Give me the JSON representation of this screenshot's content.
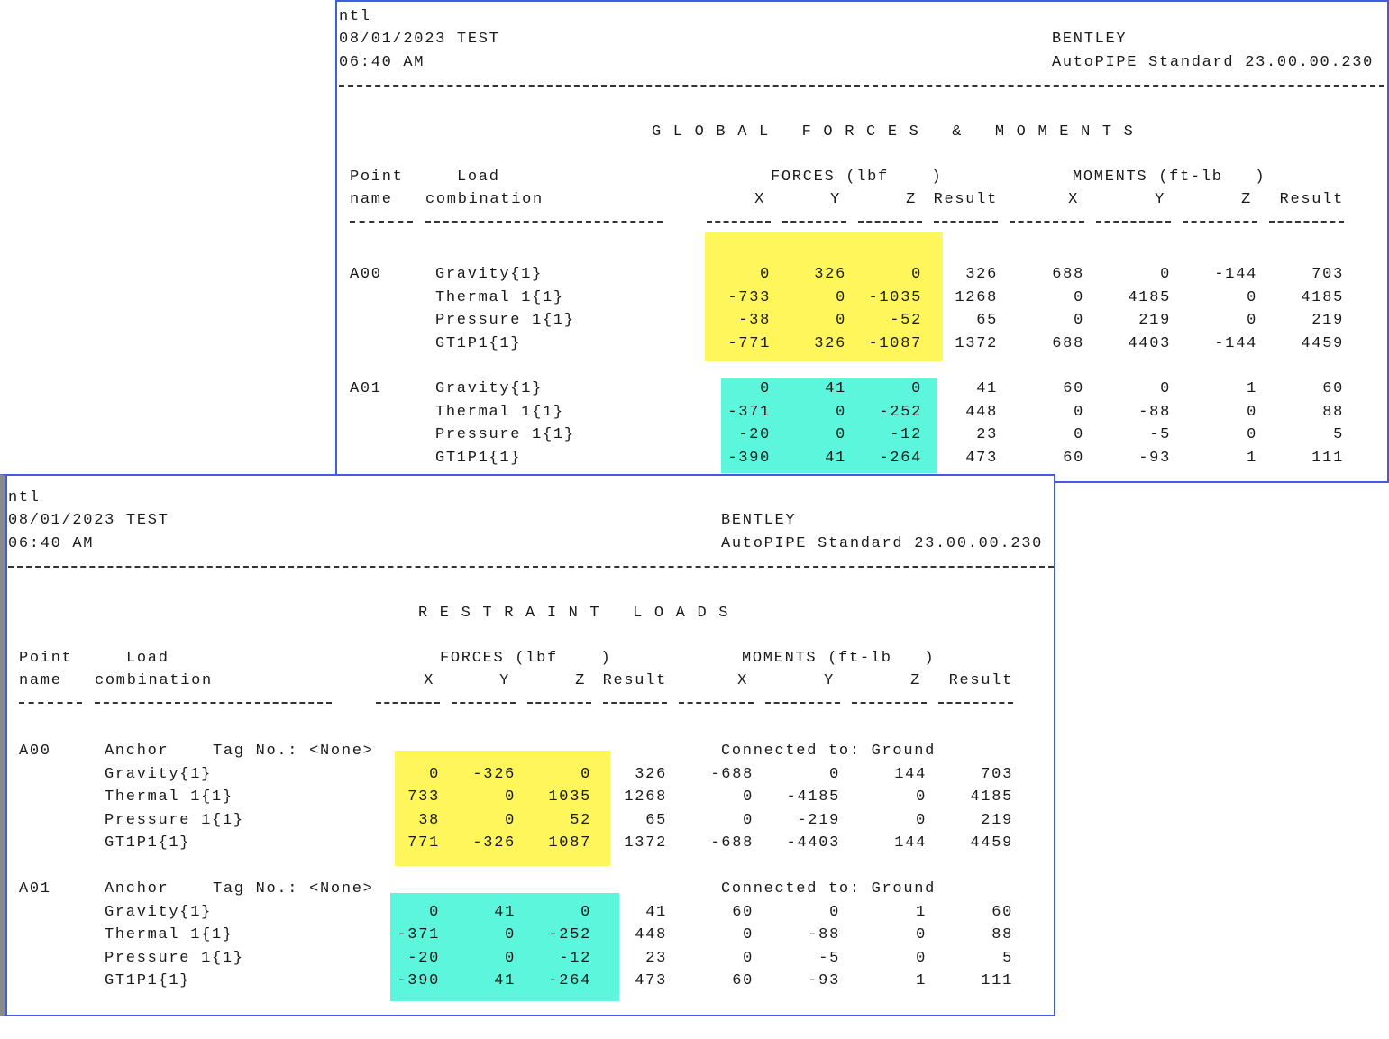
{
  "colors": {
    "highlight_a00": "#fef65b",
    "highlight_a01": "#5cf6dc",
    "border": "#3f5be8"
  },
  "header": {
    "job": "ntl",
    "date_line": "08/01/2023 TEST",
    "time": "06:40 AM",
    "company": "BENTLEY",
    "product": "AutoPIPE Standard 23.00.00.230"
  },
  "columns": {
    "point": "Point",
    "name": "name",
    "load": "Load",
    "combination": "combination",
    "forces": "FORCES (lbf    )",
    "moments": "MOMENTS (ft-lb   )",
    "x": "X",
    "y": "Y",
    "z": "Z",
    "result": "Result"
  },
  "global": {
    "title": "G L O B A L   F O R C E S   &   M O M E N T S",
    "points": [
      {
        "name": "A00",
        "rows": [
          {
            "load": "Gravity{1}",
            "v": [
              "0",
              "326",
              "0",
              "326",
              "688",
              "0",
              "-144",
              "703"
            ]
          },
          {
            "load": "Thermal 1{1}",
            "v": [
              "-733",
              "0",
              "-1035",
              "1268",
              "0",
              "4185",
              "0",
              "4185"
            ]
          },
          {
            "load": "Pressure 1{1}",
            "v": [
              "-38",
              "0",
              "-52",
              "65",
              "0",
              "219",
              "0",
              "219"
            ]
          },
          {
            "load": "GT1P1{1}",
            "v": [
              "-771",
              "326",
              "-1087",
              "1372",
              "688",
              "4403",
              "-144",
              "4459"
            ]
          }
        ]
      },
      {
        "name": "A01",
        "rows": [
          {
            "load": "Gravity{1}",
            "v": [
              "0",
              "41",
              "0",
              "41",
              "60",
              "0",
              "1",
              "60"
            ]
          },
          {
            "load": "Thermal 1{1}",
            "v": [
              "-371",
              "0",
              "-252",
              "448",
              "0",
              "-88",
              "0",
              "88"
            ]
          },
          {
            "load": "Pressure 1{1}",
            "v": [
              "-20",
              "0",
              "-12",
              "23",
              "0",
              "-5",
              "0",
              "5"
            ]
          },
          {
            "load": "GT1P1{1}",
            "v": [
              "-390",
              "41",
              "-264",
              "473",
              "60",
              "-93",
              "1",
              "111"
            ]
          }
        ]
      }
    ]
  },
  "restraint": {
    "title": "R E S T R A I N T   L O A D S",
    "points": [
      {
        "name": "A00",
        "type": "Anchor",
        "tag": "Tag No.: <None>",
        "connected": "Connected to: Ground",
        "rows": [
          {
            "load": "Gravity{1}",
            "v": [
              "0",
              "-326",
              "0",
              "326",
              "-688",
              "0",
              "144",
              "703"
            ]
          },
          {
            "load": "Thermal 1{1}",
            "v": [
              "733",
              "0",
              "1035",
              "1268",
              "0",
              "-4185",
              "0",
              "4185"
            ]
          },
          {
            "load": "Pressure 1{1}",
            "v": [
              "38",
              "0",
              "52",
              "65",
              "0",
              "-219",
              "0",
              "219"
            ]
          },
          {
            "load": "GT1P1{1}",
            "v": [
              "771",
              "-326",
              "1087",
              "1372",
              "-688",
              "-4403",
              "144",
              "4459"
            ]
          }
        ]
      },
      {
        "name": "A01",
        "type": "Anchor",
        "tag": "Tag No.: <None>",
        "connected": "Connected to: Ground",
        "rows": [
          {
            "load": "Gravity{1}",
            "v": [
              "0",
              "41",
              "0",
              "41",
              "60",
              "0",
              "1",
              "60"
            ]
          },
          {
            "load": "Thermal 1{1}",
            "v": [
              "-371",
              "0",
              "-252",
              "448",
              "0",
              "-88",
              "0",
              "88"
            ]
          },
          {
            "load": "Pressure 1{1}",
            "v": [
              "-20",
              "0",
              "-12",
              "23",
              "0",
              "-5",
              "0",
              "5"
            ]
          },
          {
            "load": "GT1P1{1}",
            "v": [
              "-390",
              "41",
              "-264",
              "473",
              "60",
              "-93",
              "1",
              "111"
            ]
          }
        ]
      }
    ]
  }
}
